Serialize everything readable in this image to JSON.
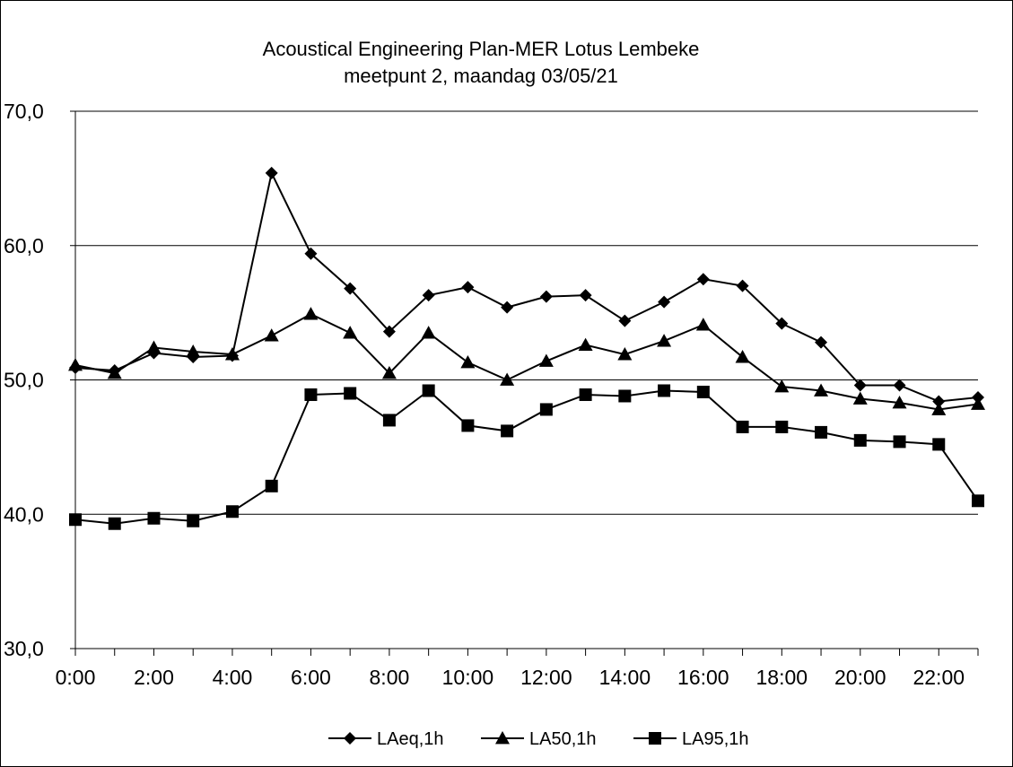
{
  "chart_data": {
    "type": "line",
    "title": "Acoustical Engineering Plan-MER Lotus Lembeke",
    "subtitle": "meetpunt 2, maandag 03/05/21",
    "xlabel": "",
    "ylabel": "",
    "x": [
      0,
      1,
      2,
      3,
      4,
      5,
      6,
      7,
      8,
      9,
      10,
      11,
      12,
      13,
      14,
      15,
      16,
      17,
      18,
      19,
      20,
      21,
      22,
      23
    ],
    "x_tick_labels": [
      "0:00",
      "2:00",
      "4:00",
      "6:00",
      "8:00",
      "10:00",
      "12:00",
      "14:00",
      "16:00",
      "18:00",
      "20:00",
      "22:00"
    ],
    "y_tick_labels": [
      "30,0",
      "40,0",
      "50,0",
      "60,0",
      "70,0"
    ],
    "y_ticks": [
      30,
      40,
      50,
      60,
      70
    ],
    "ylim": [
      30,
      70
    ],
    "xlim": [
      0,
      23
    ],
    "grid": "horizontal at 40, 50, 60, 70",
    "legend_position": "bottom",
    "series": [
      {
        "name": "LAeq,1h",
        "marker": "diamond",
        "values": [
          50.9,
          50.7,
          52.0,
          51.7,
          51.8,
          65.4,
          59.4,
          56.8,
          53.6,
          56.3,
          56.9,
          55.4,
          56.2,
          56.3,
          54.4,
          55.8,
          57.5,
          57.0,
          54.2,
          52.8,
          49.6,
          49.6,
          48.4,
          48.7
        ]
      },
      {
        "name": "LA50,1h",
        "marker": "triangle",
        "values": [
          51.1,
          50.5,
          52.4,
          52.1,
          51.9,
          53.3,
          54.9,
          53.5,
          50.5,
          53.5,
          51.3,
          50.0,
          51.4,
          52.6,
          51.9,
          52.9,
          54.1,
          51.7,
          49.5,
          49.2,
          48.6,
          48.3,
          47.8,
          48.2
        ]
      },
      {
        "name": "LA95,1h",
        "marker": "square",
        "values": [
          39.6,
          39.3,
          39.7,
          39.5,
          40.2,
          42.1,
          48.9,
          49.0,
          47.0,
          49.2,
          46.6,
          46.2,
          47.8,
          48.9,
          48.8,
          49.2,
          49.1,
          46.5,
          46.5,
          46.1,
          45.5,
          45.4,
          45.2,
          41.0
        ]
      }
    ],
    "colors": {
      "line": "#000000",
      "grid": "#000000",
      "background": "#ffffff"
    }
  }
}
